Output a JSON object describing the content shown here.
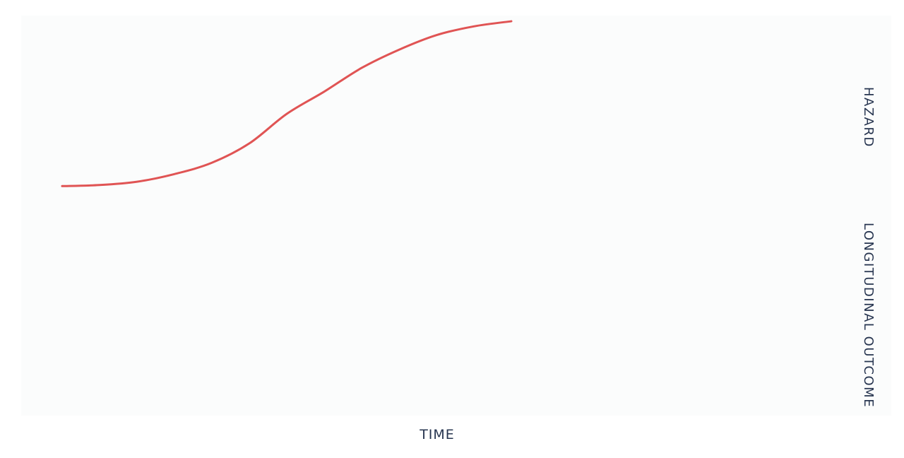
{
  "chart_data": {
    "type": "line",
    "xlabel": "TIME",
    "right_axis_labels": [
      "HAZARD",
      "LONGITUDINAL OUTCOME"
    ],
    "xlim": [
      0,
      10
    ],
    "ylim": [
      0,
      10
    ],
    "series": [
      {
        "color": "#e05454",
        "x": [
          0.0,
          0.5,
          1.0,
          1.5,
          2.0,
          2.5,
          3.0,
          3.5,
          4.0,
          4.5,
          5.0,
          5.5,
          6.0
        ],
        "y": [
          5.75,
          5.78,
          5.87,
          6.08,
          6.39,
          6.92,
          7.73,
          8.34,
          8.99,
          9.49,
          9.89,
          10.13,
          10.27
        ]
      }
    ]
  }
}
